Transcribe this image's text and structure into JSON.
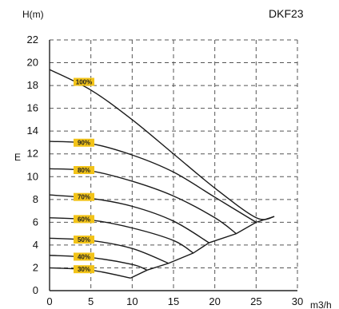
{
  "chart_data": {
    "type": "line",
    "title": "DKF23",
    "ylabel": "H(m)",
    "xlabel": "m3/h",
    "y_axis_side_letter": "E",
    "xlim": [
      0,
      30
    ],
    "ylim": [
      0,
      22
    ],
    "x_ticks": [
      0,
      5,
      10,
      15,
      20,
      25,
      30
    ],
    "y_ticks": [
      0,
      2,
      4,
      6,
      8,
      10,
      12,
      14,
      16,
      18,
      20,
      22
    ],
    "grid": true,
    "colors": {
      "line": "#1a1a1a",
      "grid": "#555555",
      "tag": "#f2c318"
    },
    "series": [
      {
        "name": "100%",
        "points": [
          [
            0,
            19.4
          ],
          [
            5,
            17.6
          ],
          [
            10,
            15.0
          ],
          [
            15,
            12.0
          ],
          [
            20,
            9.0
          ],
          [
            25,
            6.4
          ],
          [
            27.2,
            6.5
          ]
        ]
      },
      {
        "name": "90%",
        "points": [
          [
            0,
            13.1
          ],
          [
            5,
            12.9
          ],
          [
            10,
            11.9
          ],
          [
            15,
            10.4
          ],
          [
            20,
            8.2
          ],
          [
            25,
            6.0
          ]
        ]
      },
      {
        "name": "80%",
        "points": [
          [
            0,
            10.7
          ],
          [
            5,
            10.5
          ],
          [
            10,
            9.6
          ],
          [
            15,
            8.3
          ],
          [
            20,
            6.4
          ],
          [
            22.6,
            5.0
          ]
        ]
      },
      {
        "name": "70%",
        "points": [
          [
            0,
            8.4
          ],
          [
            5,
            8.1
          ],
          [
            10,
            7.4
          ],
          [
            15,
            6.1
          ],
          [
            19.3,
            4.2
          ]
        ]
      },
      {
        "name": "60%",
        "points": [
          [
            0,
            6.4
          ],
          [
            5,
            6.2
          ],
          [
            10,
            5.5
          ],
          [
            15,
            4.4
          ],
          [
            17.4,
            3.3
          ]
        ]
      },
      {
        "name": "50%",
        "points": [
          [
            0,
            4.6
          ],
          [
            5,
            4.4
          ],
          [
            10,
            3.7
          ],
          [
            14.4,
            2.4
          ]
        ]
      },
      {
        "name": "40%",
        "points": [
          [
            0,
            3.1
          ],
          [
            5,
            2.9
          ],
          [
            10,
            2.3
          ],
          [
            11.8,
            1.8
          ]
        ]
      },
      {
        "name": "30%",
        "points": [
          [
            0,
            2.0
          ],
          [
            5,
            1.8
          ],
          [
            9.8,
            1.1
          ]
        ]
      }
    ],
    "envelope": {
      "points": [
        [
          9.8,
          1.1
        ],
        [
          11.8,
          1.8
        ],
        [
          14.4,
          2.4
        ],
        [
          17.4,
          3.3
        ],
        [
          19.3,
          4.2
        ],
        [
          22.6,
          5.0
        ],
        [
          25,
          6.0
        ],
        [
          27.2,
          6.5
        ]
      ]
    }
  }
}
